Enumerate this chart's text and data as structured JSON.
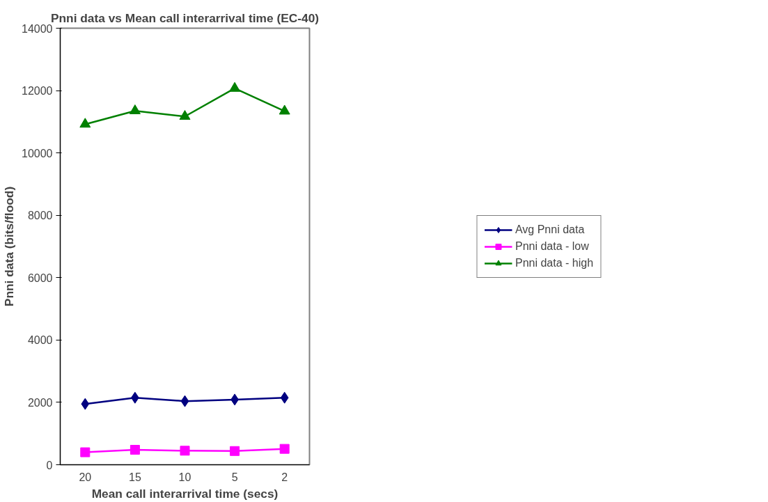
{
  "chart_data": {
    "type": "line",
    "title": "Pnni data vs Mean call interarrival time (EC-40)",
    "xlabel": "Mean call interarrival time (secs)",
    "ylabel": "Pnni data (bits/flood)",
    "categories": [
      "20",
      "15",
      "10",
      "5",
      "2"
    ],
    "series": [
      {
        "name": "Avg Pnni data",
        "color": "#000080",
        "marker": "diamond",
        "values": [
          1950,
          2150,
          2040,
          2090,
          2150
        ]
      },
      {
        "name": "Pnni data - low",
        "color": "#ff00ff",
        "marker": "square",
        "values": [
          400,
          480,
          450,
          440,
          510
        ]
      },
      {
        "name": "Pnni data - high",
        "color": "#008000",
        "marker": "triangle",
        "values": [
          10920,
          11350,
          11170,
          12070,
          11340
        ]
      }
    ],
    "ylim": [
      0,
      14000
    ],
    "yticks": [
      0,
      2000,
      4000,
      6000,
      8000,
      10000,
      12000,
      14000
    ],
    "grid": false,
    "legend": "right",
    "line_style": "solid"
  }
}
